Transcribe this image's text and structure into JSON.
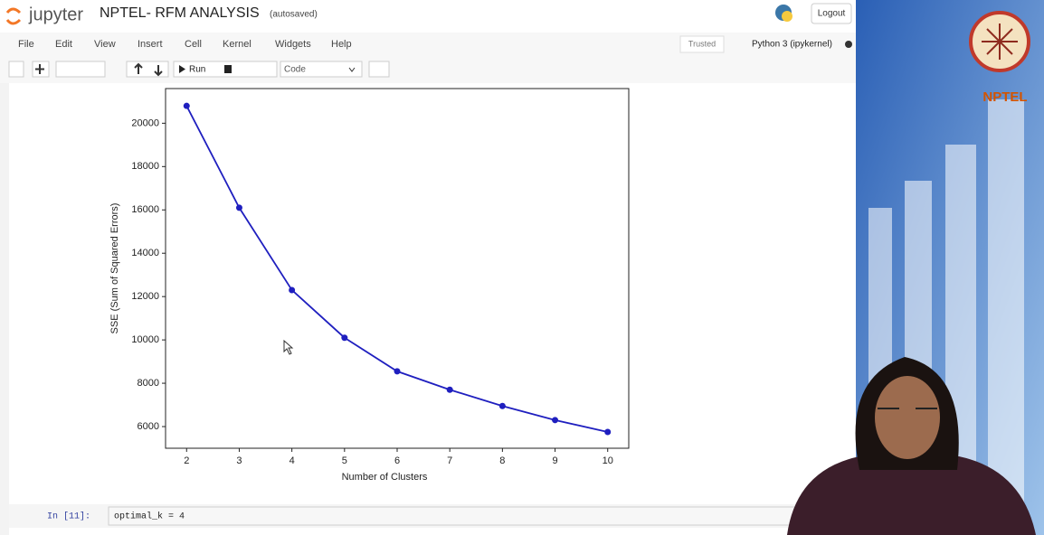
{
  "header": {
    "logo": "jupyter",
    "title": "NPTEL- RFM ANALYSIS",
    "status": "(autosaved)",
    "logout": "Logout"
  },
  "menu": {
    "items": [
      "File",
      "Edit",
      "View",
      "Insert",
      "Cell",
      "Kernel",
      "Widgets",
      "Help"
    ],
    "trusted": "Trusted",
    "kernel": "Python 3 (ipykernel)"
  },
  "toolbar": {
    "run": "Run",
    "cell_type": "Code"
  },
  "chart_data": {
    "type": "line",
    "xlabel": "Number of Clusters",
    "ylabel": "SSE (Sum of Squared Errors)",
    "x": [
      2,
      3,
      4,
      5,
      6,
      7,
      8,
      9,
      10
    ],
    "values": [
      20800,
      16100,
      12300,
      10100,
      8550,
      7700,
      6950,
      6300,
      5750
    ],
    "color": "#1f1fbf",
    "xlim": [
      1.6,
      10.4
    ],
    "ylim": [
      5000,
      21600
    ],
    "xticks": [
      2,
      3,
      4,
      5,
      6,
      7,
      8,
      9,
      10
    ],
    "yticks": [
      6000,
      8000,
      10000,
      12000,
      14000,
      16000,
      18000,
      20000
    ]
  },
  "cell": {
    "prompt": "In [11]:",
    "code": "optimal_k = 4"
  },
  "overlay": {
    "brand": "NPTEL"
  }
}
